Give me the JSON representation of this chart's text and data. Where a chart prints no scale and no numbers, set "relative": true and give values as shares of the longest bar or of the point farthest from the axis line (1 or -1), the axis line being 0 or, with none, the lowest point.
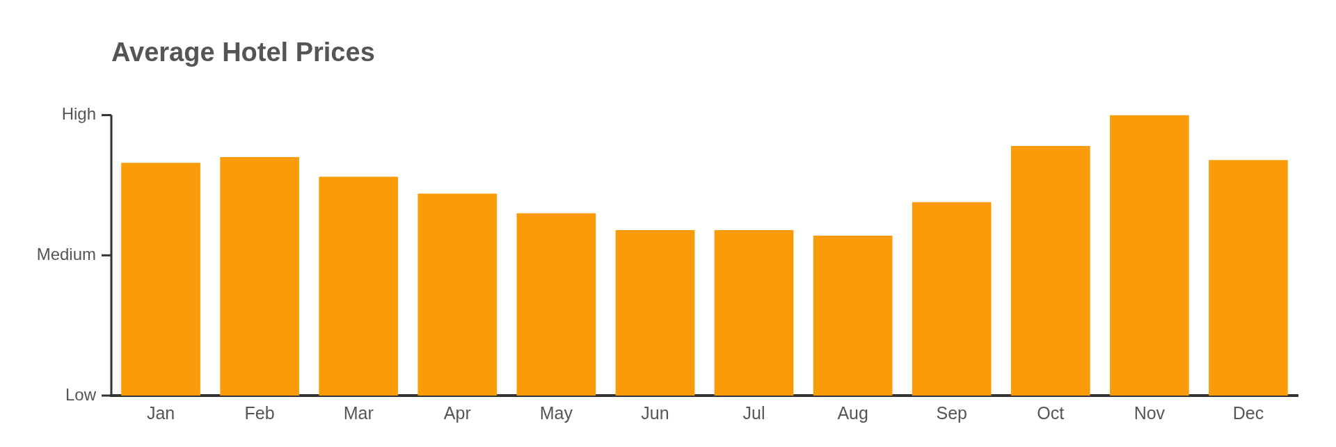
{
  "chart_data": {
    "type": "bar",
    "title": "Average Hotel Prices",
    "categories": [
      "Jan",
      "Feb",
      "Mar",
      "Apr",
      "May",
      "Jun",
      "Jul",
      "Aug",
      "Sep",
      "Oct",
      "Nov",
      "Dec"
    ],
    "values": [
      0.83,
      0.85,
      0.78,
      0.72,
      0.65,
      0.59,
      0.59,
      0.57,
      0.69,
      0.89,
      1,
      0.84
    ],
    "color": "#fa9c0a",
    "relative": true,
    "annotations": [
      "Low",
      "Medium",
      "High"
    ],
    "grid": false,
    "legend": false
  }
}
